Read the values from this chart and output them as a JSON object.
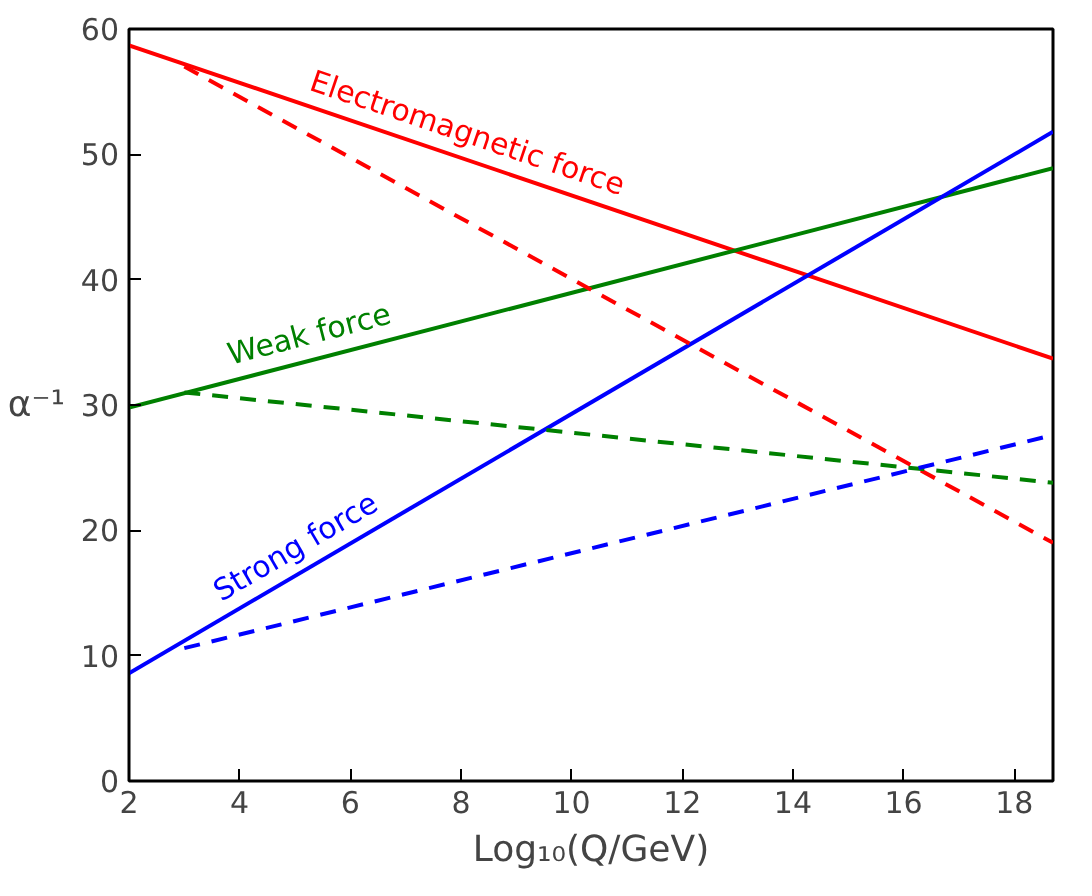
{
  "chart_data": {
    "type": "line",
    "xlabel": "Log₁₀(Q/GeV)",
    "ylabel": "α⁻¹",
    "xlim": [
      2,
      18.7
    ],
    "ylim": [
      0,
      60
    ],
    "xticks": [
      2,
      4,
      6,
      8,
      10,
      12,
      14,
      16,
      18
    ],
    "yticks": [
      0,
      10,
      20,
      30,
      40,
      50,
      60
    ],
    "series": [
      {
        "name": "Electromagnetic force",
        "color": "#ff0000",
        "x": [
          2,
          18.7
        ],
        "values": [
          58.7,
          33.7
        ],
        "line_style": "solid"
      },
      {
        "name": "Weak force",
        "color": "#008000",
        "x": [
          2,
          18.7
        ],
        "values": [
          29.8,
          48.9
        ],
        "line_style": "solid"
      },
      {
        "name": "Strong force",
        "color": "#0000ff",
        "x": [
          2,
          18.7
        ],
        "values": [
          8.6,
          51.8
        ],
        "line_style": "solid"
      },
      {
        "color": "#ff0000",
        "x": [
          3,
          18.7
        ],
        "values": [
          57,
          19
        ],
        "line_style": "dashed"
      },
      {
        "color": "#008000",
        "x": [
          3,
          18.7
        ],
        "values": [
          31,
          23.8
        ],
        "line_style": "dashed"
      },
      {
        "color": "#0000ff",
        "x": [
          3,
          18.7
        ],
        "values": [
          10.6,
          27.6
        ],
        "line_style": "dashed"
      }
    ]
  }
}
